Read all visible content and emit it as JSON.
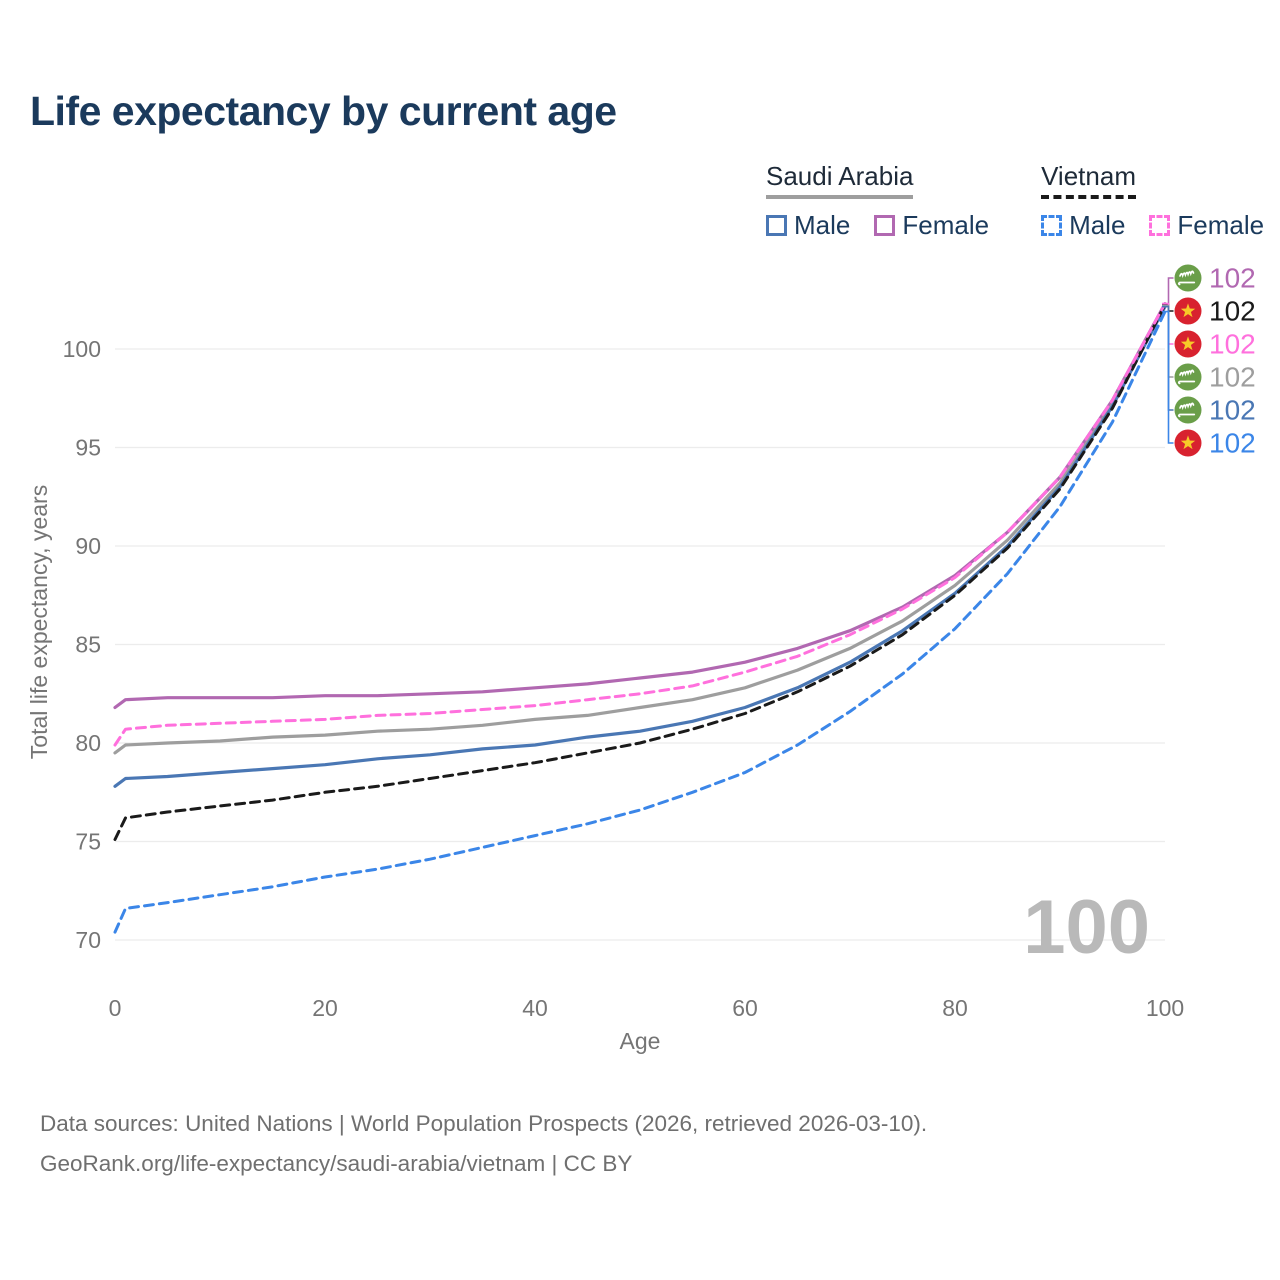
{
  "title": "Life expectancy by current age",
  "legend": {
    "groups": [
      {
        "label": "Saudi Arabia",
        "line_style": "solid",
        "line_color": "#9e9e9e",
        "items": [
          {
            "label": "Male",
            "color": "#4a77b4",
            "dash": false
          },
          {
            "label": "Female",
            "color": "#b168b1",
            "dash": false
          }
        ]
      },
      {
        "label": "Vietnam",
        "line_style": "dashed",
        "line_color": "#1a1a1a",
        "items": [
          {
            "label": "Male",
            "color": "#3b86e8",
            "dash": true
          },
          {
            "label": "Female",
            "color": "#ff70dd",
            "dash": true
          }
        ]
      }
    ]
  },
  "watermark_age": "100",
  "footer": {
    "line1": "Data sources: United Nations | World Population Prospects (2026, retrieved 2026-03-10).",
    "line2": "GeoRank.org/life-expectancy/saudi-arabia/vietnam | CC BY"
  },
  "chart_data": {
    "type": "line",
    "title": "Life expectancy by current age",
    "xlabel": "Age",
    "ylabel": "Total life expectancy, years",
    "xlim": [
      0,
      100
    ],
    "ylim": [
      69.5,
      103
    ],
    "xticks": [
      0,
      20,
      40,
      60,
      80,
      100
    ],
    "yticks": [
      70,
      75,
      80,
      85,
      90,
      95,
      100
    ],
    "grid": "horizontal-only",
    "legend_position": "top-right",
    "hovered_age": 100,
    "x": [
      0,
      1,
      5,
      10,
      15,
      20,
      25,
      30,
      35,
      40,
      45,
      50,
      55,
      60,
      65,
      70,
      75,
      80,
      85,
      90,
      95,
      100
    ],
    "series": [
      {
        "id": "saudi-arabia-female",
        "country": "Saudi Arabia",
        "sex": "Female",
        "color": "#b168b1",
        "line": "solid",
        "flag": "sa",
        "end_label": "102",
        "values": [
          81.8,
          82.2,
          82.3,
          82.3,
          82.3,
          82.4,
          82.4,
          82.5,
          82.6,
          82.8,
          83.0,
          83.3,
          83.6,
          84.1,
          84.8,
          85.7,
          86.9,
          88.5,
          90.7,
          93.5,
          97.4,
          102.3
        ]
      },
      {
        "id": "vietnam-both-sexes",
        "country": "Vietnam",
        "sex": "Both sexes",
        "color": "#1a1a1a",
        "line": "dashed",
        "flag": "vn",
        "end_label": "102",
        "values": [
          75.1,
          76.2,
          76.5,
          76.8,
          77.1,
          77.5,
          77.8,
          78.2,
          78.6,
          79.0,
          79.5,
          80.0,
          80.7,
          81.5,
          82.6,
          83.9,
          85.5,
          87.5,
          89.9,
          92.9,
          97.0,
          102.25
        ]
      },
      {
        "id": "vietnam-female",
        "country": "Vietnam",
        "sex": "Female",
        "color": "#ff70dd",
        "line": "dashed",
        "flag": "vn",
        "end_label": "102",
        "values": [
          79.9,
          80.7,
          80.9,
          81.0,
          81.1,
          81.2,
          81.4,
          81.5,
          81.7,
          81.9,
          82.2,
          82.5,
          82.9,
          83.6,
          84.4,
          85.5,
          86.8,
          88.4,
          90.7,
          93.5,
          97.4,
          102.3
        ]
      },
      {
        "id": "saudi-arabia-both-sexes",
        "country": "Saudi Arabia",
        "sex": "Both sexes",
        "color": "#9e9e9e",
        "line": "solid",
        "flag": "sa",
        "end_label": "102",
        "values": [
          79.5,
          79.9,
          80.0,
          80.1,
          80.3,
          80.4,
          80.6,
          80.7,
          80.9,
          81.2,
          81.4,
          81.8,
          82.2,
          82.8,
          83.7,
          84.8,
          86.2,
          88.0,
          90.3,
          93.2,
          97.2,
          102.2
        ]
      },
      {
        "id": "saudi-arabia-male",
        "country": "Saudi Arabia",
        "sex": "Male",
        "color": "#4a77b4",
        "line": "solid",
        "flag": "sa",
        "end_label": "102",
        "values": [
          77.8,
          78.2,
          78.3,
          78.5,
          78.7,
          78.9,
          79.2,
          79.4,
          79.7,
          79.9,
          80.3,
          80.6,
          81.1,
          81.8,
          82.8,
          84.1,
          85.7,
          87.6,
          90.0,
          93.0,
          97.1,
          102.15
        ]
      },
      {
        "id": "vietnam-male",
        "country": "Vietnam",
        "sex": "Male",
        "color": "#3b86e8",
        "line": "dashed",
        "flag": "vn",
        "end_label": "102",
        "values": [
          70.4,
          71.6,
          71.9,
          72.3,
          72.7,
          73.2,
          73.6,
          74.1,
          74.7,
          75.3,
          75.9,
          76.6,
          77.5,
          78.5,
          79.9,
          81.6,
          83.5,
          85.8,
          88.6,
          92.0,
          96.3,
          101.9
        ]
      }
    ]
  }
}
